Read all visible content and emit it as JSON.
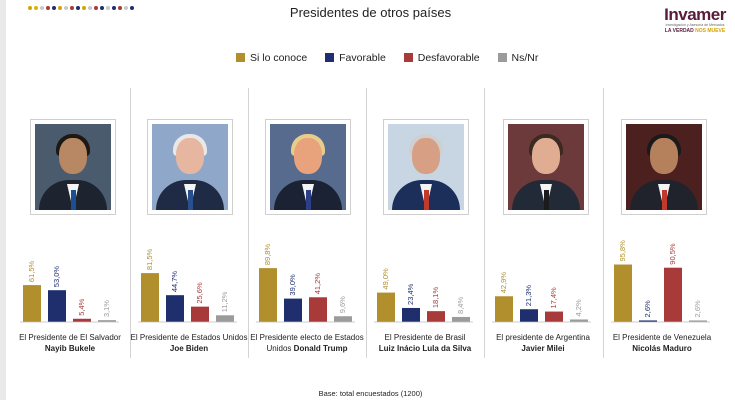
{
  "title": "Presidentes de otros países",
  "logo": {
    "brand": "Invamer",
    "subtitle": "Investigación y Asesoría de Mercados",
    "tagline_a": "LA VERDAD",
    "tagline_b": "NOS MUEVE"
  },
  "footnote": "Base: total encuestados (1200)",
  "chart_data": {
    "type": "bar",
    "title": "Presidentes de otros países",
    "ylim": [
      0,
      100
    ],
    "grid": false,
    "legend_position": "top",
    "series": [
      {
        "name": "Si lo conoce",
        "color": "#b08f2c",
        "values": [
          61.5,
          81.5,
          89.8,
          49.0,
          42.9,
          95.8
        ]
      },
      {
        "name": "Favorable",
        "color": "#1f2f6e",
        "values": [
          53.0,
          44.7,
          39.0,
          23.4,
          21.3,
          2.6
        ]
      },
      {
        "name": "Desfavorable",
        "color": "#a83a3a",
        "values": [
          5.4,
          25.6,
          41.2,
          18.1,
          17.4,
          90.5
        ]
      },
      {
        "name": "Ns/Nr",
        "color": "#9b9b9b",
        "values": [
          3.1,
          11.2,
          9.6,
          8.4,
          4.2,
          2.6
        ]
      }
    ],
    "categories": [
      {
        "line1": "El Presidente de El Salvador",
        "name": "Nayib Bukele"
      },
      {
        "line1": "El Presidente de Estados Unidos",
        "name": "Joe Biden"
      },
      {
        "line1": "El Presidente electo de Estados",
        "line2": "Unidos",
        "name": "Donald Trump"
      },
      {
        "line1": "El Presidente de Brasil",
        "name": "Luiz Inácio Lula da Silva"
      },
      {
        "line1": "El presidente de Argentina",
        "name": "Javier Milei"
      },
      {
        "line1": "El Presidente de Venezuela",
        "name": "Nicolás Maduro"
      }
    ],
    "photos": [
      {
        "icon": "portrait-photo",
        "background": "#4a5b6e",
        "skin": "#b88763",
        "hair": "#1e1812",
        "suit": "#1d2430",
        "tie": "#1b4f95"
      },
      {
        "icon": "portrait-photo",
        "background": "#8fa7c9",
        "skin": "#e6b6a0",
        "hair": "#e8e8e8",
        "suit": "#1f2a44",
        "tie": "#2a4f8f"
      },
      {
        "icon": "portrait-photo",
        "background": "#566b8e",
        "skin": "#e9a37c",
        "hair": "#e8cd8a",
        "suit": "#1b2233",
        "tie": "#2b3f88"
      },
      {
        "icon": "portrait-photo",
        "background": "#c8d6e4",
        "skin": "#d79f83",
        "hair": "#cfcfcf",
        "suit": "#1c2f5a",
        "tie": "#c0392b"
      },
      {
        "icon": "portrait-photo",
        "background": "#6c3a3a",
        "skin": "#e0ad92",
        "hair": "#3a2a22",
        "suit": "#222a38",
        "tie": "#1b1b1b"
      },
      {
        "icon": "portrait-photo",
        "background": "#4d2020",
        "skin": "#b5805c",
        "hair": "#1a1a1a",
        "suit": "#20232c",
        "tie": "#c0392b"
      }
    ]
  }
}
